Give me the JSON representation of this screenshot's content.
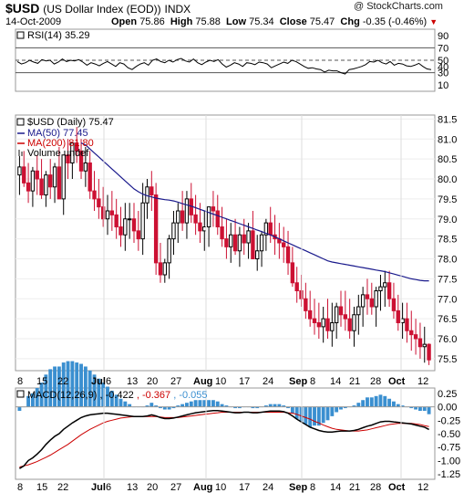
{
  "header": {
    "symbol": "$USD",
    "name": "(US Dollar Index (EOD))",
    "exchange": "INDX",
    "date": "14-Oct-2009",
    "open_label": "Open",
    "open": "75.86",
    "high_label": "High",
    "high": "75.88",
    "low_label": "Low",
    "low": "75.34",
    "close_label": "Close",
    "close": "75.47",
    "chg_label": "Chg",
    "chg": "-0.35 (-0.46%)",
    "brand": "@ StockCharts.com"
  },
  "rsi_panel": {
    "legend": "RSI(14) 35.29"
  },
  "price_panel": {
    "legend": "$USD (Daily) 75.47",
    "ma50_legend": "MA(50) 77.45",
    "ma200_legend": "MA(200) 81.80",
    "volume_legend": "Volume undef"
  },
  "macd_panel": {
    "legend_prefix": "MACD(12,26,9)",
    "macd_val": "-0.422",
    "signal_val": "-0.367",
    "hist_val": "-0.055"
  },
  "x_axis": {
    "ticks": [
      "8",
      "15",
      "22",
      "Jul",
      "6",
      "13",
      "20",
      "27",
      "Aug",
      "10",
      "17",
      "24",
      "Sep",
      "8",
      "14",
      "21",
      "28",
      "Oct",
      "12"
    ]
  },
  "colors": {
    "up_candle": "#000000",
    "down_candle": "#cc1133",
    "ma50": "#1a1a8c",
    "ma200": "#cc0000",
    "macd_line": "#000000",
    "signal_line": "#cc0000",
    "histogram": "#3a8fd0"
  },
  "chart_data": [
    {
      "type": "line",
      "title": "RSI(14) 35.29",
      "series": [
        {
          "name": "RSI(14)",
          "values": [
            48,
            44,
            46,
            50,
            47,
            45,
            51,
            49,
            50,
            44,
            47,
            52,
            48,
            50,
            49,
            51,
            47,
            42,
            46,
            44,
            41,
            45,
            48,
            44,
            40,
            46,
            44,
            38,
            35,
            40,
            44,
            46,
            42,
            50,
            52,
            48,
            46,
            50,
            47,
            51,
            53,
            49,
            47,
            52,
            46,
            43,
            47,
            50,
            48,
            51,
            44,
            39,
            42,
            46,
            44,
            40,
            46,
            45,
            43,
            47,
            46,
            44,
            38,
            41,
            44,
            47,
            45,
            50,
            48,
            44,
            40,
            37,
            38,
            36,
            35,
            31,
            34,
            33,
            33,
            30,
            28,
            35,
            36,
            38,
            40,
            43,
            48,
            47,
            50,
            46,
            44,
            48,
            42,
            45,
            44,
            41,
            40,
            42,
            45,
            40,
            36,
            35
          ]
        }
      ],
      "y_ticks": [
        30,
        50,
        70,
        90
      ],
      "y_ticks_minor": [
        10,
        40
      ],
      "ylim": [
        0,
        100
      ]
    },
    {
      "type": "line",
      "title": "$USD (Daily) 75.47",
      "candles": {
        "open": [
          80.1,
          80.3,
          79.9,
          79.7,
          80.2,
          80.0,
          79.6,
          80.1,
          79.8,
          80.3,
          79.5,
          80.6,
          80.4,
          80.9,
          80.7,
          80.2,
          80.4,
          79.7,
          79.5,
          79.3,
          79.0,
          79.2,
          79.1,
          78.8,
          78.6,
          79.0,
          79.0,
          78.7,
          78.5,
          79.4,
          79.8,
          79.6,
          77.9,
          77.6,
          77.9,
          78.5,
          78.9,
          79.2,
          78.9,
          79.5,
          79.1,
          78.9,
          78.7,
          78.8,
          79.3,
          79.2,
          78.8,
          78.5,
          78.3,
          78.6,
          78.2,
          78.6,
          78.4,
          78.7,
          78.0,
          78.2,
          78.6,
          78.9,
          78.6,
          78.5,
          78.4,
          78.3,
          77.9,
          77.4,
          77.2,
          77.0,
          76.7,
          76.5,
          76.4,
          76.3,
          76.5,
          76.2,
          76.4,
          76.8,
          76.6,
          76.5,
          76.2,
          76.6,
          76.8,
          77.1,
          77.0,
          76.8,
          77.2,
          77.3,
          77.4,
          77.0,
          76.7,
          76.4,
          76.5,
          76.2,
          76.1,
          76.0,
          75.8,
          75.86
        ],
        "high": [
          80.6,
          80.7,
          80.4,
          80.3,
          80.6,
          80.5,
          80.2,
          80.5,
          80.4,
          80.8,
          80.2,
          81.0,
          80.9,
          81.3,
          81.0,
          80.8,
          80.7,
          80.2,
          80.0,
          79.8,
          79.6,
          79.7,
          79.5,
          79.3,
          79.4,
          79.4,
          79.4,
          79.2,
          79.9,
          80.0,
          80.2,
          79.9,
          78.4,
          78.0,
          78.6,
          79.2,
          79.4,
          79.7,
          79.7,
          79.9,
          79.6,
          79.4,
          79.2,
          79.2,
          79.7,
          79.6,
          79.3,
          79.0,
          78.9,
          79.0,
          78.8,
          79.0,
          78.9,
          79.2,
          78.6,
          78.7,
          79.0,
          79.3,
          79.1,
          78.9,
          78.8,
          78.7,
          78.3,
          77.8,
          77.6,
          77.4,
          77.2,
          77.0,
          76.9,
          76.8,
          77.0,
          76.9,
          76.9,
          77.2,
          77.2,
          77.0,
          76.8,
          77.1,
          77.3,
          77.5,
          77.4,
          77.3,
          77.6,
          77.7,
          77.7,
          77.4,
          77.1,
          76.9,
          76.9,
          76.7,
          76.5,
          76.4,
          76.3,
          75.88
        ],
        "low": [
          79.6,
          79.8,
          79.4,
          79.3,
          79.6,
          79.5,
          79.3,
          79.5,
          79.4,
          79.8,
          79.1,
          80.0,
          80.0,
          80.4,
          80.0,
          79.8,
          79.5,
          79.2,
          79.0,
          78.8,
          78.6,
          78.7,
          78.5,
          78.3,
          78.2,
          78.5,
          78.4,
          78.2,
          78.1,
          79.0,
          79.2,
          77.6,
          77.4,
          77.4,
          77.5,
          78.1,
          78.4,
          78.7,
          78.5,
          78.9,
          78.6,
          78.4,
          78.2,
          78.3,
          78.8,
          78.6,
          78.3,
          78.0,
          77.9,
          78.1,
          77.8,
          78.1,
          78.0,
          78.1,
          77.7,
          77.8,
          78.2,
          78.4,
          78.1,
          78.0,
          77.9,
          77.6,
          77.3,
          76.9,
          76.8,
          76.5,
          76.3,
          76.1,
          76.0,
          75.9,
          76.0,
          75.8,
          76.0,
          76.3,
          76.2,
          76.0,
          75.8,
          76.1,
          76.3,
          76.6,
          76.6,
          76.3,
          76.7,
          76.8,
          76.8,
          76.5,
          76.2,
          76.0,
          75.9,
          75.7,
          75.6,
          75.5,
          75.4,
          75.34
        ],
        "close": [
          80.3,
          79.9,
          79.7,
          80.2,
          80.0,
          79.6,
          80.1,
          79.8,
          80.3,
          79.5,
          80.6,
          80.4,
          80.9,
          80.7,
          80.2,
          80.4,
          79.7,
          79.5,
          79.3,
          79.0,
          79.2,
          79.1,
          78.8,
          78.6,
          79.0,
          79.0,
          78.7,
          78.5,
          79.4,
          79.8,
          79.6,
          77.9,
          77.6,
          77.9,
          78.5,
          78.9,
          79.2,
          78.9,
          79.5,
          79.1,
          78.9,
          78.7,
          78.8,
          79.3,
          79.2,
          78.8,
          78.5,
          78.3,
          78.6,
          78.2,
          78.6,
          78.4,
          78.7,
          78.0,
          78.2,
          78.6,
          78.9,
          78.6,
          78.5,
          78.4,
          78.3,
          77.9,
          77.4,
          77.2,
          77.0,
          76.7,
          76.5,
          76.4,
          76.3,
          76.5,
          76.2,
          76.4,
          76.8,
          76.6,
          76.5,
          76.2,
          76.6,
          76.8,
          77.1,
          77.0,
          76.8,
          77.2,
          77.3,
          77.4,
          77.0,
          76.7,
          76.4,
          76.5,
          76.2,
          76.1,
          76.0,
          75.8,
          75.86,
          75.47
        ]
      },
      "series": [
        {
          "name": "MA(50)",
          "values": [
            null,
            null,
            null,
            null,
            null,
            null,
            null,
            null,
            null,
            null,
            null,
            null,
            null,
            null,
            80.9,
            80.85,
            80.75,
            80.65,
            80.55,
            80.45,
            80.35,
            80.25,
            80.15,
            80.05,
            79.95,
            79.85,
            79.75,
            79.68,
            79.62,
            79.58,
            79.55,
            79.52,
            79.5,
            79.48,
            79.47,
            79.45,
            79.42,
            79.38,
            79.35,
            79.32,
            79.28,
            79.24,
            79.2,
            79.16,
            79.12,
            79.08,
            79.04,
            79.0,
            78.96,
            78.92,
            78.88,
            78.84,
            78.8,
            78.76,
            78.72,
            78.68,
            78.64,
            78.6,
            78.55,
            78.5,
            78.45,
            78.4,
            78.35,
            78.3,
            78.25,
            78.2,
            78.15,
            78.1,
            78.05,
            78.0,
            77.95,
            77.92,
            77.9,
            77.88,
            77.86,
            77.84,
            77.82,
            77.8,
            77.78,
            77.76,
            77.74,
            77.72,
            77.7,
            77.68,
            77.65,
            77.62,
            77.59,
            77.56,
            77.53,
            77.5,
            77.48,
            77.46,
            77.45,
            77.45
          ]
        },
        {
          "name": "MA(200)",
          "values": []
        }
      ],
      "y_ticks": [
        75.5,
        76.0,
        76.5,
        77.0,
        77.5,
        78.0,
        78.5,
        79.0,
        79.5,
        80.0,
        80.5,
        81.0,
        81.5
      ],
      "ylim": [
        75.2,
        81.6
      ]
    },
    {
      "type": "bar",
      "title": "MACD(12,26,9)",
      "series": [
        {
          "name": "MACD",
          "values": [
            -1.15,
            -1.1,
            -1.0,
            -0.95,
            -0.88,
            -0.8,
            -0.7,
            -0.62,
            -0.55,
            -0.5,
            -0.42,
            -0.36,
            -0.3,
            -0.25,
            -0.2,
            -0.17,
            -0.15,
            -0.14,
            -0.13,
            -0.12,
            -0.12,
            -0.13,
            -0.14,
            -0.15,
            -0.16,
            -0.17,
            -0.18,
            -0.18,
            -0.18,
            -0.17,
            -0.15,
            -0.17,
            -0.2,
            -0.22,
            -0.22,
            -0.21,
            -0.19,
            -0.17,
            -0.15,
            -0.13,
            -0.11,
            -0.1,
            -0.09,
            -0.08,
            -0.07,
            -0.07,
            -0.08,
            -0.09,
            -0.1,
            -0.11,
            -0.11,
            -0.1,
            -0.1,
            -0.11,
            -0.11,
            -0.1,
            -0.09,
            -0.08,
            -0.08,
            -0.08,
            -0.09,
            -0.12,
            -0.17,
            -0.23,
            -0.28,
            -0.33,
            -0.38,
            -0.41,
            -0.44,
            -0.46,
            -0.47,
            -0.47,
            -0.46,
            -0.45,
            -0.45,
            -0.45,
            -0.44,
            -0.42,
            -0.39,
            -0.36,
            -0.34,
            -0.31,
            -0.28,
            -0.27,
            -0.27,
            -0.28,
            -0.29,
            -0.3,
            -0.31,
            -0.32,
            -0.34,
            -0.36,
            -0.38,
            -0.422
          ]
        },
        {
          "name": "Signal",
          "values": [
            -1.12,
            -1.1,
            -1.08,
            -1.05,
            -1.02,
            -0.98,
            -0.94,
            -0.9,
            -0.85,
            -0.8,
            -0.75,
            -0.7,
            -0.64,
            -0.58,
            -0.52,
            -0.47,
            -0.42,
            -0.38,
            -0.34,
            -0.3,
            -0.27,
            -0.25,
            -0.23,
            -0.21,
            -0.2,
            -0.19,
            -0.18,
            -0.18,
            -0.18,
            -0.18,
            -0.18,
            -0.18,
            -0.19,
            -0.2,
            -0.2,
            -0.2,
            -0.2,
            -0.19,
            -0.18,
            -0.17,
            -0.16,
            -0.15,
            -0.14,
            -0.13,
            -0.12,
            -0.11,
            -0.1,
            -0.1,
            -0.1,
            -0.1,
            -0.1,
            -0.1,
            -0.1,
            -0.1,
            -0.1,
            -0.1,
            -0.1,
            -0.1,
            -0.1,
            -0.1,
            -0.1,
            -0.11,
            -0.12,
            -0.14,
            -0.17,
            -0.2,
            -0.23,
            -0.27,
            -0.3,
            -0.34,
            -0.37,
            -0.4,
            -0.42,
            -0.43,
            -0.44,
            -0.45,
            -0.45,
            -0.45,
            -0.44,
            -0.43,
            -0.41,
            -0.39,
            -0.37,
            -0.35,
            -0.33,
            -0.32,
            -0.31,
            -0.31,
            -0.31,
            -0.31,
            -0.32,
            -0.33,
            -0.35,
            -0.367
          ]
        },
        {
          "name": "Histogram",
          "values": []
        }
      ],
      "y_ticks": [
        0.25,
        0.0,
        -0.25,
        -0.5,
        -0.75,
        -1.0,
        -1.25
      ],
      "ylim": [
        -1.35,
        0.35
      ]
    }
  ]
}
